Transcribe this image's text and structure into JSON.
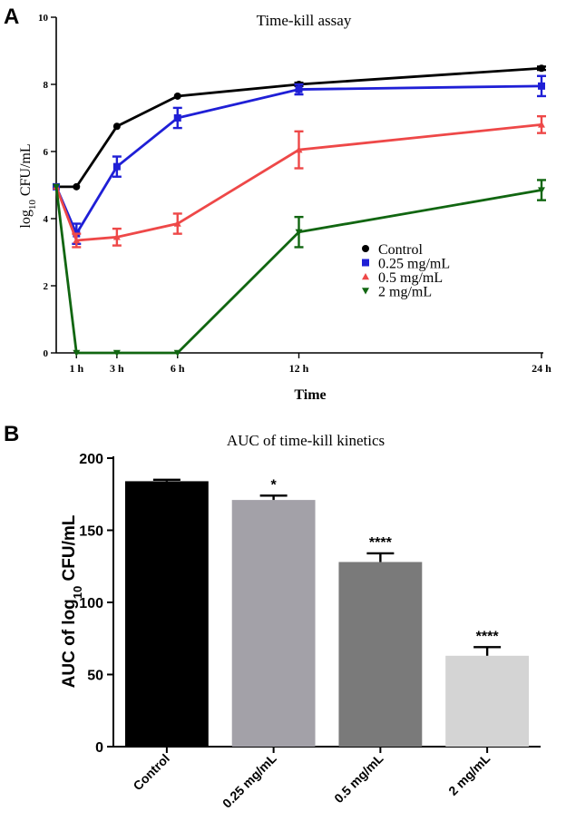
{
  "chart_data": [
    {
      "type": "line",
      "panel_label": "A",
      "title": "Time-kill  assay",
      "xlabel": "Time",
      "ylabel_main": "log",
      "ylabel_sub": "10",
      "ylabel_rest": " CFU/mL",
      "x": [
        0,
        1,
        3,
        6,
        12,
        24
      ],
      "xticks": [
        1,
        3,
        6,
        12,
        24
      ],
      "xtick_labels": [
        "1 h",
        "3 h",
        "6 h",
        "12 h",
        "24 h"
      ],
      "xlim": [
        0,
        24
      ],
      "ylim": [
        0,
        10
      ],
      "yticks": [
        0,
        2,
        4,
        6,
        8,
        10
      ],
      "ytick_labels": [
        "0",
        "2",
        "4",
        "6",
        "8",
        "10"
      ],
      "legend_position": "lower-right",
      "series": [
        {
          "name": "Control",
          "color": "#000000",
          "marker": "circle",
          "values": [
            4.95,
            4.95,
            6.75,
            7.65,
            8.0,
            8.48
          ],
          "errors": [
            0,
            0,
            0,
            0,
            0.05,
            0.05
          ]
        },
        {
          "name": "0.25 mg/mL",
          "color": "#1f1fd6",
          "marker": "square",
          "values": [
            4.95,
            3.55,
            5.55,
            7.0,
            7.85,
            7.95
          ],
          "errors": [
            0,
            0.3,
            0.3,
            0.3,
            0.15,
            0.3
          ]
        },
        {
          "name": "0.5 mg/mL",
          "color": "#ee4848",
          "marker": "triangle",
          "values": [
            4.95,
            3.35,
            3.45,
            3.85,
            6.05,
            6.8
          ],
          "errors": [
            0,
            0.2,
            0.25,
            0.3,
            0.55,
            0.25
          ]
        },
        {
          "name": "2 mg/mL",
          "color": "#116611",
          "marker": "triangle-down",
          "values": [
            4.95,
            0,
            0,
            0,
            3.6,
            4.85
          ],
          "errors": [
            0,
            0,
            0,
            0,
            0.45,
            0.3
          ]
        }
      ]
    },
    {
      "type": "bar",
      "panel_label": "B",
      "title": "AUC of time-kill  kinetics",
      "ylabel_main": "AUC of log",
      "ylabel_sub": "10",
      "ylabel_rest": " CFU/mL",
      "xlabel": "",
      "categories": [
        "Control",
        "0.25 mg/mL",
        "0.5 mg/mL",
        "2 mg/mL"
      ],
      "values": [
        184,
        171,
        128,
        63
      ],
      "errors": [
        1,
        3,
        6,
        6
      ],
      "significance": [
        "",
        "*",
        "****",
        "****"
      ],
      "colors": [
        "#000000",
        "#a3a1a8",
        "#7a7a7a",
        "#d4d4d4"
      ],
      "ylim": [
        0,
        200
      ],
      "yticks": [
        0,
        50,
        100,
        150,
        200
      ],
      "ytick_labels": [
        "0",
        "50",
        "100",
        "150",
        "200"
      ]
    }
  ]
}
